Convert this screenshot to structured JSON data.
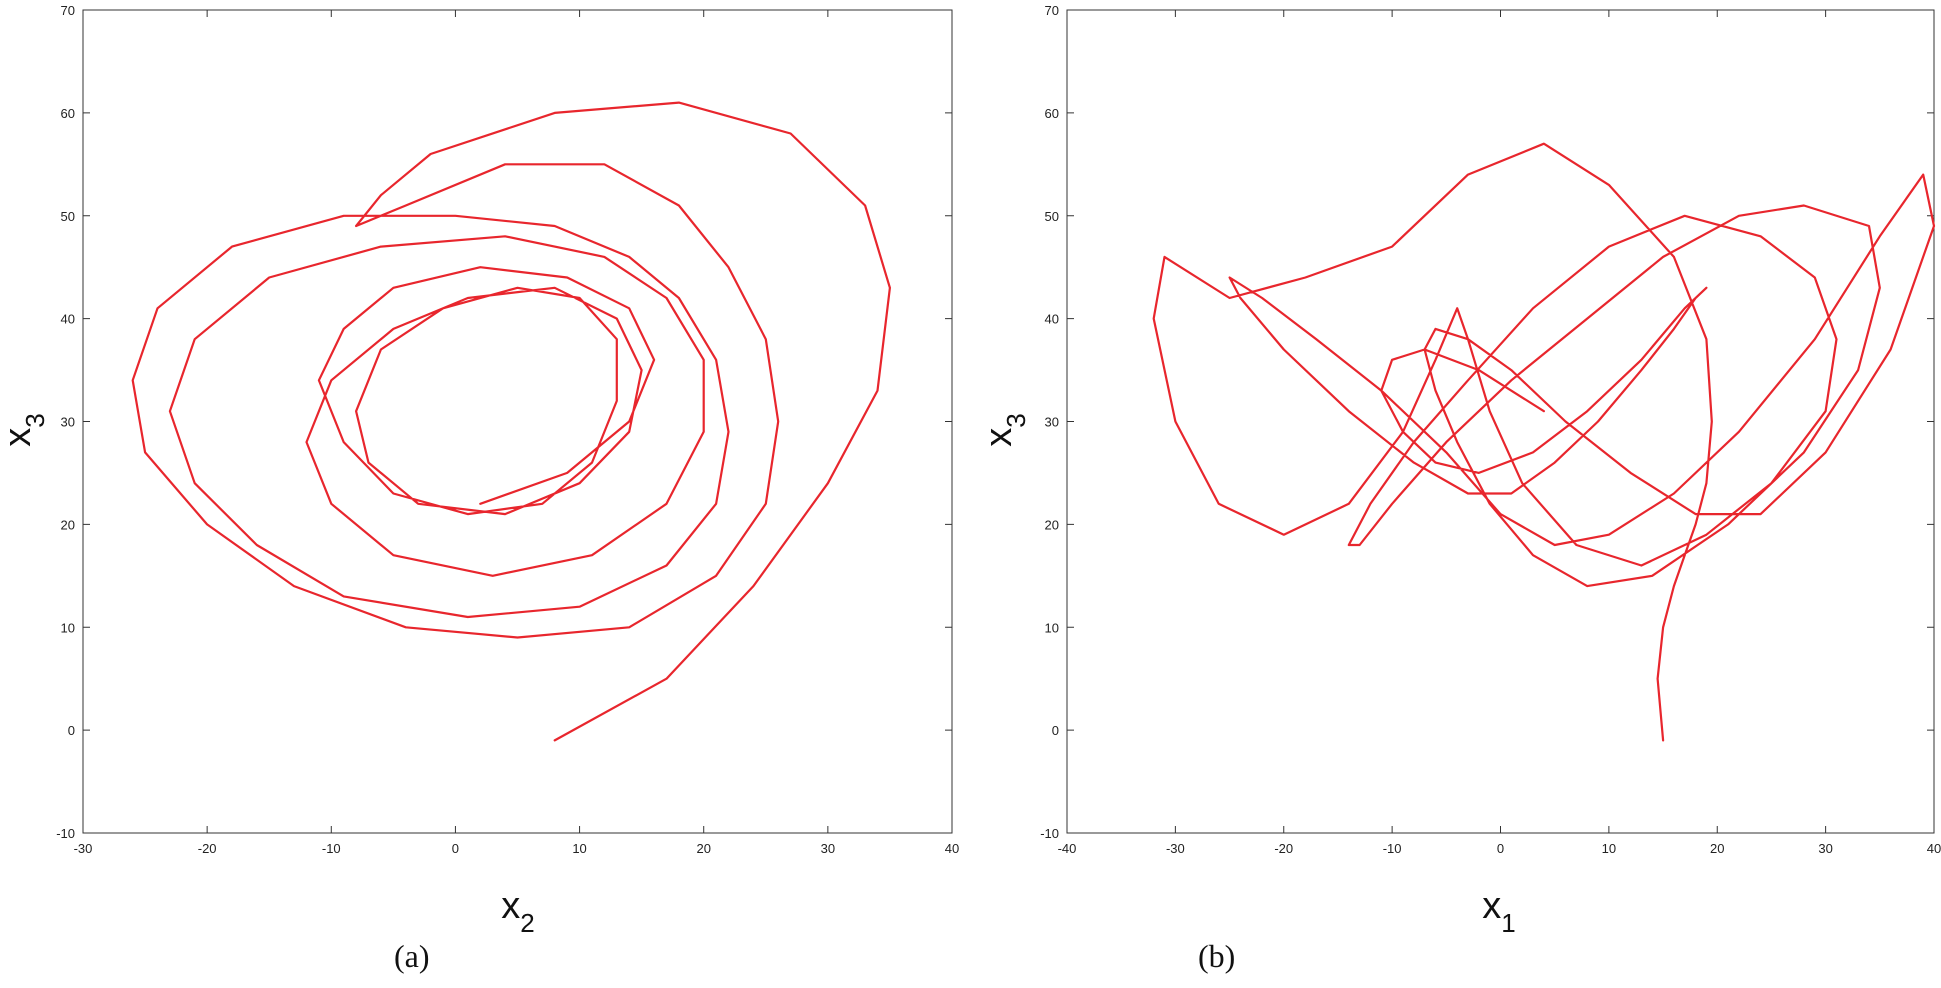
{
  "chart_data": [
    {
      "type": "line",
      "panel_label": "(a)",
      "xlabel": {
        "var": "x",
        "sub": "2"
      },
      "ylabel": {
        "var": "x",
        "sub": "3"
      },
      "xlim": [
        -30,
        40
      ],
      "ylim": [
        -10,
        70
      ],
      "xticks": [
        "-30",
        "-20",
        "-10",
        "0",
        "10",
        "20",
        "30",
        "40"
      ],
      "yticks": [
        "-10",
        "0",
        "10",
        "20",
        "30",
        "40",
        "50",
        "60",
        "70"
      ],
      "grid": false,
      "line_color": "#e8262d",
      "series": [
        {
          "x": [
            8,
            17,
            24,
            30,
            34,
            35,
            33,
            27,
            18,
            8,
            -2,
            -6,
            -8,
            -4,
            4,
            12,
            18,
            22,
            25,
            26,
            25,
            21,
            14,
            5,
            -4,
            -13,
            -20,
            -25,
            -26,
            -24,
            -18,
            -9,
            0,
            8,
            14,
            18,
            21,
            22,
            21,
            17,
            10,
            1,
            -9,
            -16,
            -21,
            -23,
            -21,
            -15,
            -6,
            4,
            12,
            17,
            20,
            20,
            17,
            11,
            3,
            -5,
            -10,
            -12,
            -10,
            -5,
            1,
            8,
            13,
            15,
            14,
            10,
            4,
            -3,
            -7,
            -8,
            -6,
            -1,
            5,
            10,
            13,
            13,
            11,
            7,
            1,
            -5,
            -9,
            -11,
            -9,
            -5,
            2,
            9,
            14,
            16,
            14,
            9,
            2
          ],
          "y": [
            -1,
            5,
            14,
            24,
            33,
            43,
            51,
            58,
            61,
            60,
            56,
            52,
            49,
            51,
            55,
            55,
            51,
            45,
            38,
            30,
            22,
            15,
            10,
            9,
            10,
            14,
            20,
            27,
            34,
            41,
            47,
            50,
            50,
            49,
            46,
            42,
            36,
            29,
            22,
            16,
            12,
            11,
            13,
            18,
            24,
            31,
            38,
            44,
            47,
            48,
            46,
            42,
            36,
            29,
            22,
            17,
            15,
            17,
            22,
            28,
            34,
            39,
            42,
            43,
            40,
            35,
            29,
            24,
            21,
            22,
            26,
            31,
            37,
            41,
            43,
            42,
            38,
            32,
            26,
            22,
            21,
            23,
            28,
            34,
            39,
            43,
            45,
            44,
            41,
            36,
            30,
            25,
            22
          ]
        }
      ]
    },
    {
      "type": "line",
      "panel_label": "(b)",
      "xlabel": {
        "var": "x",
        "sub": "1"
      },
      "ylabel": {
        "var": "x",
        "sub": "3"
      },
      "xlim": [
        -40,
        40
      ],
      "ylim": [
        -10,
        70
      ],
      "xticks": [
        "-40",
        "-30",
        "-20",
        "-10",
        "0",
        "10",
        "20",
        "30",
        "40"
      ],
      "yticks": [
        "-10",
        "0",
        "10",
        "20",
        "30",
        "40",
        "50",
        "60",
        "70"
      ],
      "grid": false,
      "line_color": "#e8262d",
      "series": [
        {
          "x": [
            15,
            14.5,
            15,
            16,
            17,
            18,
            19,
            19.5,
            19,
            16,
            10,
            4,
            -3,
            -10,
            -18,
            -25,
            -31,
            -32,
            -30,
            -26,
            -20,
            -14,
            -9,
            -6,
            -4,
            -3,
            -1,
            2,
            7,
            13,
            19,
            25,
            30,
            31,
            29,
            24,
            17,
            10,
            3,
            -3,
            -8,
            -12,
            -14,
            -13,
            -10,
            -5,
            1,
            8,
            15,
            22,
            28,
            34,
            35,
            33,
            28,
            21,
            14,
            8,
            3,
            -1,
            -4,
            -6,
            -7,
            -6,
            -3,
            1,
            6,
            12,
            18,
            24,
            30,
            36,
            40,
            39,
            35,
            29,
            22,
            16,
            10,
            5,
            0,
            -5,
            -11,
            -17,
            -22,
            -25,
            -24,
            -20,
            -14,
            -8,
            -3,
            1,
            5,
            9,
            13,
            16,
            18,
            19,
            17,
            13,
            8,
            3,
            -2,
            -6,
            -9,
            -11,
            -10,
            -7,
            -2,
            4
          ],
          "y": [
            -1,
            5,
            10,
            14,
            17,
            20,
            24,
            30,
            38,
            46,
            53,
            57,
            54,
            47,
            44,
            42,
            46,
            40,
            30,
            22,
            19,
            22,
            29,
            36,
            41,
            38,
            31,
            24,
            18,
            16,
            19,
            24,
            31,
            38,
            44,
            48,
            50,
            47,
            41,
            34,
            28,
            22,
            18,
            18,
            22,
            28,
            34,
            40,
            46,
            50,
            51,
            49,
            43,
            35,
            27,
            20,
            15,
            14,
            17,
            22,
            28,
            33,
            37,
            39,
            38,
            35,
            30,
            25,
            21,
            21,
            27,
            37,
            49,
            54,
            48,
            38,
            29,
            23,
            19,
            18,
            21,
            27,
            33,
            38,
            42,
            44,
            42,
            37,
            31,
            26,
            23,
            23,
            26,
            30,
            35,
            39,
            42,
            43,
            41,
            36,
            31,
            27,
            25,
            26,
            29,
            33,
            36,
            37,
            35,
            31
          ]
        }
      ]
    }
  ]
}
